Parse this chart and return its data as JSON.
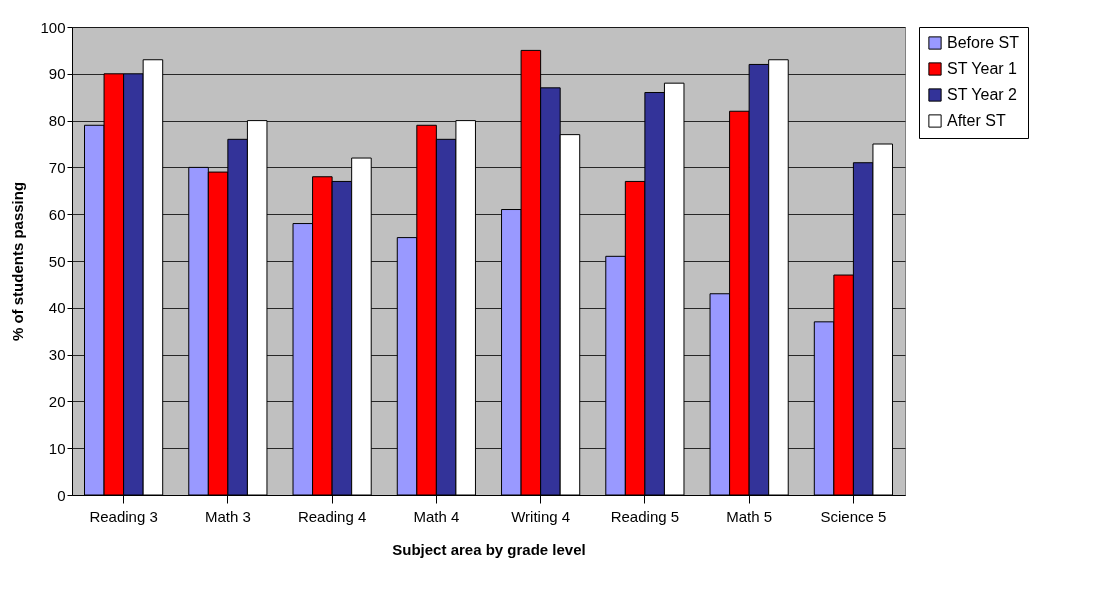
{
  "chart_data": {
    "type": "bar",
    "xlabel": "Subject area by grade level",
    "ylabel": "% of students passing",
    "categories": [
      "Reading 3",
      "Math 3",
      "Reading 4",
      "Math 4",
      "Writing 4",
      "Reading 5",
      "Math 5",
      "Science 5"
    ],
    "series": [
      {
        "name": "Before ST",
        "color": "#9999ff",
        "values": [
          79,
          70,
          58,
          55,
          61,
          51,
          43,
          37
        ]
      },
      {
        "name": "ST Year 1",
        "color": "#ff0000",
        "values": [
          90,
          69,
          68,
          79,
          95,
          67,
          82,
          47
        ]
      },
      {
        "name": "ST Year 2",
        "color": "#333399",
        "values": [
          90,
          76,
          67,
          76,
          87,
          86,
          92,
          71
        ]
      },
      {
        "name": "After ST",
        "color": "#ffffff",
        "values": [
          93,
          80,
          72,
          80,
          77,
          88,
          93,
          75
        ]
      }
    ],
    "ylim": [
      0,
      100
    ],
    "yticks": [
      0,
      10,
      20,
      30,
      40,
      50,
      60,
      70,
      80,
      90,
      100
    ],
    "grid": "y",
    "legend": "right"
  }
}
